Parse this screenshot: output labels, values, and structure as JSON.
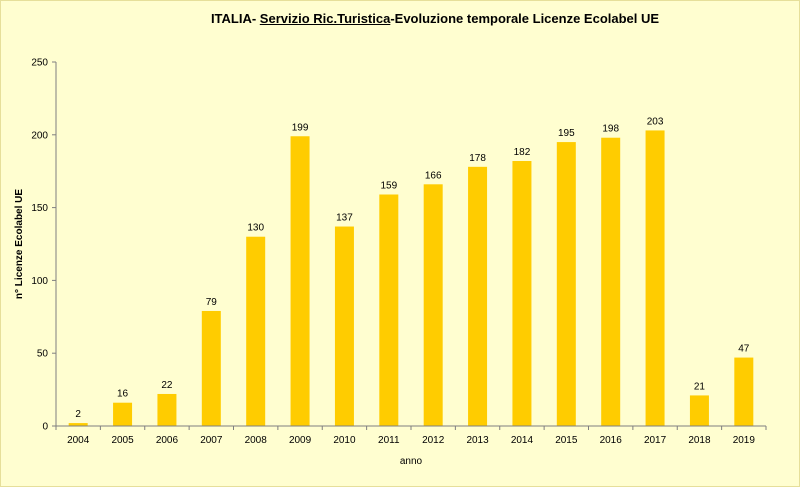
{
  "title": {
    "prefix": "ITALIA- ",
    "underlined": "Servizio Ric.Turistica",
    "suffix": "-Evoluzione temporale Licenze Ecolabel UE"
  },
  "colors": {
    "background": "#fffed0",
    "bar": "#ffcc00",
    "axis": "#7f7f7f"
  },
  "chart_data": {
    "type": "bar",
    "title": "ITALIA- Servizio Ric.Turistica-Evoluzione temporale Licenze Ecolabel UE",
    "xlabel": "anno",
    "ylabel": "n° Licenze Ecolabel UE",
    "categories": [
      "2004",
      "2005",
      "2006",
      "2007",
      "2008",
      "2009",
      "2010",
      "2011",
      "2012",
      "2013",
      "2014",
      "2015",
      "2016",
      "2017",
      "2018",
      "2019"
    ],
    "values": [
      2,
      16,
      22,
      79,
      130,
      199,
      137,
      159,
      166,
      178,
      182,
      195,
      198,
      203,
      21,
      47
    ],
    "ylim": [
      0,
      250
    ],
    "yticks": [
      0,
      50,
      100,
      150,
      200,
      250
    ],
    "grid": false,
    "legend": "none",
    "data_labels": true
  }
}
